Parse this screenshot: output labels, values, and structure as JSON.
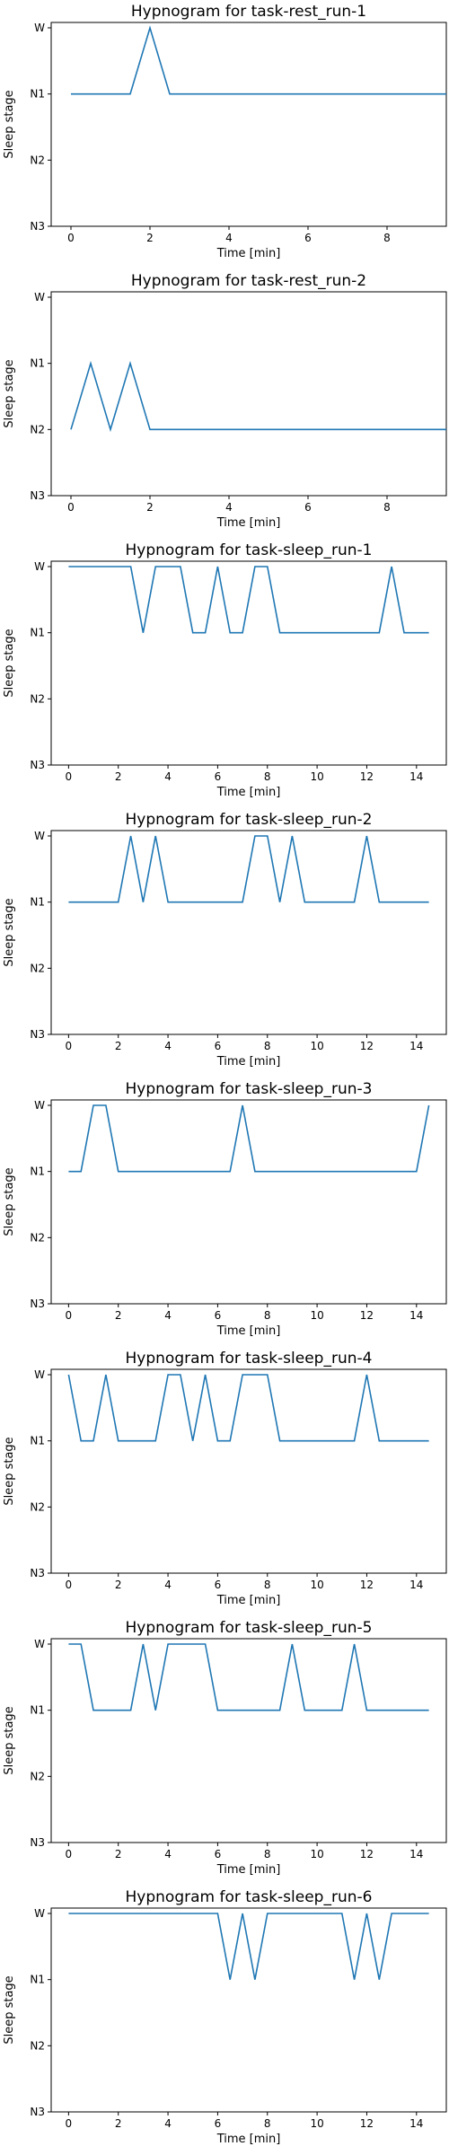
{
  "figure": {
    "colors": {
      "line": "#1f77b4",
      "axes": "#000000",
      "background": "#ffffff"
    }
  },
  "chart_data": [
    {
      "type": "line",
      "title": "Hypnogram for task-rest_run-1",
      "xlabel": "Time [min]",
      "ylabel": "Sleep stage",
      "xlim": [
        -0.5,
        9.5
      ],
      "xticks": [
        0,
        2,
        4,
        6,
        8
      ],
      "yticks": [
        "W",
        "N1",
        "N2",
        "N3"
      ],
      "grid": false,
      "series": [
        {
          "x": [
            0,
            0.5,
            1,
            1.5,
            2,
            2.5,
            3,
            3.5,
            4,
            4.5,
            5,
            5.5,
            6,
            6.5,
            7,
            7.5,
            8,
            8.5,
            9,
            9.5
          ],
          "y": [
            "N1",
            "N1",
            "N1",
            "N1",
            "W",
            "N1",
            "N1",
            "N1",
            "N1",
            "N1",
            "N1",
            "N1",
            "N1",
            "N1",
            "N1",
            "N1",
            "N1",
            "N1",
            "N1",
            "N1"
          ]
        }
      ]
    },
    {
      "type": "line",
      "title": "Hypnogram for task-rest_run-2",
      "xlabel": "Time [min]",
      "ylabel": "Sleep stage",
      "xlim": [
        -0.5,
        9.5
      ],
      "xticks": [
        0,
        2,
        4,
        6,
        8
      ],
      "yticks": [
        "W",
        "N1",
        "N2",
        "N3"
      ],
      "grid": false,
      "series": [
        {
          "x": [
            0,
            0.5,
            1,
            1.5,
            2,
            2.5,
            3,
            3.5,
            4,
            4.5,
            5,
            5.5,
            6,
            6.5,
            7,
            7.5,
            8,
            8.5,
            9,
            9.5
          ],
          "y": [
            "N2",
            "N1",
            "N2",
            "N1",
            "N2",
            "N2",
            "N2",
            "N2",
            "N2",
            "N2",
            "N2",
            "N2",
            "N2",
            "N2",
            "N2",
            "N2",
            "N2",
            "N2",
            "N2",
            "N2"
          ]
        }
      ]
    },
    {
      "type": "line",
      "title": "Hypnogram for task-sleep_run-1",
      "xlabel": "Time [min]",
      "ylabel": "Sleep stage",
      "xlim": [
        -0.7,
        15.2
      ],
      "xticks": [
        0,
        2,
        4,
        6,
        8,
        10,
        12,
        14
      ],
      "yticks": [
        "W",
        "N1",
        "N2",
        "N3"
      ],
      "grid": false,
      "series": [
        {
          "x": [
            0,
            0.5,
            1,
            1.5,
            2,
            2.5,
            3,
            3.5,
            4,
            4.5,
            5,
            5.5,
            6,
            6.5,
            7,
            7.5,
            8,
            8.5,
            9,
            9.5,
            10,
            10.5,
            11,
            11.5,
            12,
            12.5,
            13,
            13.5,
            14,
            14.5
          ],
          "y": [
            "W",
            "W",
            "W",
            "W",
            "W",
            "W",
            "N1",
            "W",
            "W",
            "W",
            "N1",
            "N1",
            "W",
            "N1",
            "N1",
            "W",
            "W",
            "N1",
            "N1",
            "N1",
            "N1",
            "N1",
            "N1",
            "N1",
            "N1",
            "N1",
            "W",
            "N1",
            "N1",
            "N1"
          ]
        }
      ]
    },
    {
      "type": "line",
      "title": "Hypnogram for task-sleep_run-2",
      "xlabel": "Time [min]",
      "ylabel": "Sleep stage",
      "xlim": [
        -0.7,
        15.2
      ],
      "xticks": [
        0,
        2,
        4,
        6,
        8,
        10,
        12,
        14
      ],
      "yticks": [
        "W",
        "N1",
        "N2",
        "N3"
      ],
      "grid": false,
      "series": [
        {
          "x": [
            0,
            0.5,
            1,
            1.5,
            2,
            2.5,
            3,
            3.5,
            4,
            4.5,
            5,
            5.5,
            6,
            6.5,
            7,
            7.5,
            8,
            8.5,
            9,
            9.5,
            10,
            10.5,
            11,
            11.5,
            12,
            12.5,
            13,
            13.5,
            14,
            14.5
          ],
          "y": [
            "N1",
            "N1",
            "N1",
            "N1",
            "N1",
            "W",
            "N1",
            "W",
            "N1",
            "N1",
            "N1",
            "N1",
            "N1",
            "N1",
            "N1",
            "W",
            "W",
            "N1",
            "W",
            "N1",
            "N1",
            "N1",
            "N1",
            "N1",
            "W",
            "N1",
            "N1",
            "N1",
            "N1",
            "N1"
          ]
        }
      ]
    },
    {
      "type": "line",
      "title": "Hypnogram for task-sleep_run-3",
      "xlabel": "Time [min]",
      "ylabel": "Sleep stage",
      "xlim": [
        -0.7,
        15.2
      ],
      "xticks": [
        0,
        2,
        4,
        6,
        8,
        10,
        12,
        14
      ],
      "yticks": [
        "W",
        "N1",
        "N2",
        "N3"
      ],
      "grid": false,
      "series": [
        {
          "x": [
            0,
            0.5,
            1,
            1.5,
            2,
            2.5,
            3,
            3.5,
            4,
            4.5,
            5,
            5.5,
            6,
            6.5,
            7,
            7.5,
            8,
            8.5,
            9,
            9.5,
            10,
            10.5,
            11,
            11.5,
            12,
            12.5,
            13,
            13.5,
            14,
            14.5
          ],
          "y": [
            "N1",
            "N1",
            "W",
            "W",
            "N1",
            "N1",
            "N1",
            "N1",
            "N1",
            "N1",
            "N1",
            "N1",
            "N1",
            "N1",
            "W",
            "N1",
            "N1",
            "N1",
            "N1",
            "N1",
            "N1",
            "N1",
            "N1",
            "N1",
            "N1",
            "N1",
            "N1",
            "N1",
            "N1",
            "W"
          ]
        }
      ]
    },
    {
      "type": "line",
      "title": "Hypnogram for task-sleep_run-4",
      "xlabel": "Time [min]",
      "ylabel": "Sleep stage",
      "xlim": [
        -0.7,
        15.2
      ],
      "xticks": [
        0,
        2,
        4,
        6,
        8,
        10,
        12,
        14
      ],
      "yticks": [
        "W",
        "N1",
        "N2",
        "N3"
      ],
      "grid": false,
      "series": [
        {
          "x": [
            0,
            0.5,
            1,
            1.5,
            2,
            2.5,
            3,
            3.5,
            4,
            4.5,
            5,
            5.5,
            6,
            6.5,
            7,
            7.5,
            8,
            8.5,
            9,
            9.5,
            10,
            10.5,
            11,
            11.5,
            12,
            12.5,
            13,
            13.5,
            14,
            14.5
          ],
          "y": [
            "W",
            "N1",
            "N1",
            "W",
            "N1",
            "N1",
            "N1",
            "N1",
            "W",
            "W",
            "N1",
            "W",
            "N1",
            "N1",
            "W",
            "W",
            "W",
            "N1",
            "N1",
            "N1",
            "N1",
            "N1",
            "N1",
            "N1",
            "W",
            "N1",
            "N1",
            "N1",
            "N1",
            "N1"
          ]
        }
      ]
    },
    {
      "type": "line",
      "title": "Hypnogram for task-sleep_run-5",
      "xlabel": "Time [min]",
      "ylabel": "Sleep stage",
      "xlim": [
        -0.7,
        15.2
      ],
      "xticks": [
        0,
        2,
        4,
        6,
        8,
        10,
        12,
        14
      ],
      "yticks": [
        "W",
        "N1",
        "N2",
        "N3"
      ],
      "grid": false,
      "series": [
        {
          "x": [
            0,
            0.5,
            1,
            1.5,
            2,
            2.5,
            3,
            3.5,
            4,
            4.5,
            5,
            5.5,
            6,
            6.5,
            7,
            7.5,
            8,
            8.5,
            9,
            9.5,
            10,
            10.5,
            11,
            11.5,
            12,
            12.5,
            13,
            13.5,
            14,
            14.5
          ],
          "y": [
            "W",
            "W",
            "N1",
            "N1",
            "N1",
            "N1",
            "W",
            "N1",
            "W",
            "W",
            "W",
            "W",
            "N1",
            "N1",
            "N1",
            "N1",
            "N1",
            "N1",
            "W",
            "N1",
            "N1",
            "N1",
            "N1",
            "W",
            "N1",
            "N1",
            "N1",
            "N1",
            "N1",
            "N1"
          ]
        }
      ]
    },
    {
      "type": "line",
      "title": "Hypnogram for task-sleep_run-6",
      "xlabel": "Time [min]",
      "ylabel": "Sleep stage",
      "xlim": [
        -0.7,
        15.2
      ],
      "xticks": [
        0,
        2,
        4,
        6,
        8,
        10,
        12,
        14
      ],
      "yticks": [
        "W",
        "N1",
        "N2",
        "N3"
      ],
      "grid": false,
      "series": [
        {
          "x": [
            0,
            0.5,
            1,
            1.5,
            2,
            2.5,
            3,
            3.5,
            4,
            4.5,
            5,
            5.5,
            6,
            6.5,
            7,
            7.5,
            8,
            8.5,
            9,
            9.5,
            10,
            10.5,
            11,
            11.5,
            12,
            12.5,
            13,
            13.5,
            14,
            14.5
          ],
          "y": [
            "W",
            "W",
            "W",
            "W",
            "W",
            "W",
            "W",
            "W",
            "W",
            "W",
            "W",
            "W",
            "W",
            "N1",
            "W",
            "N1",
            "W",
            "W",
            "W",
            "W",
            "W",
            "W",
            "W",
            "N1",
            "W",
            "N1",
            "W",
            "W",
            "W",
            "W"
          ]
        }
      ]
    }
  ]
}
